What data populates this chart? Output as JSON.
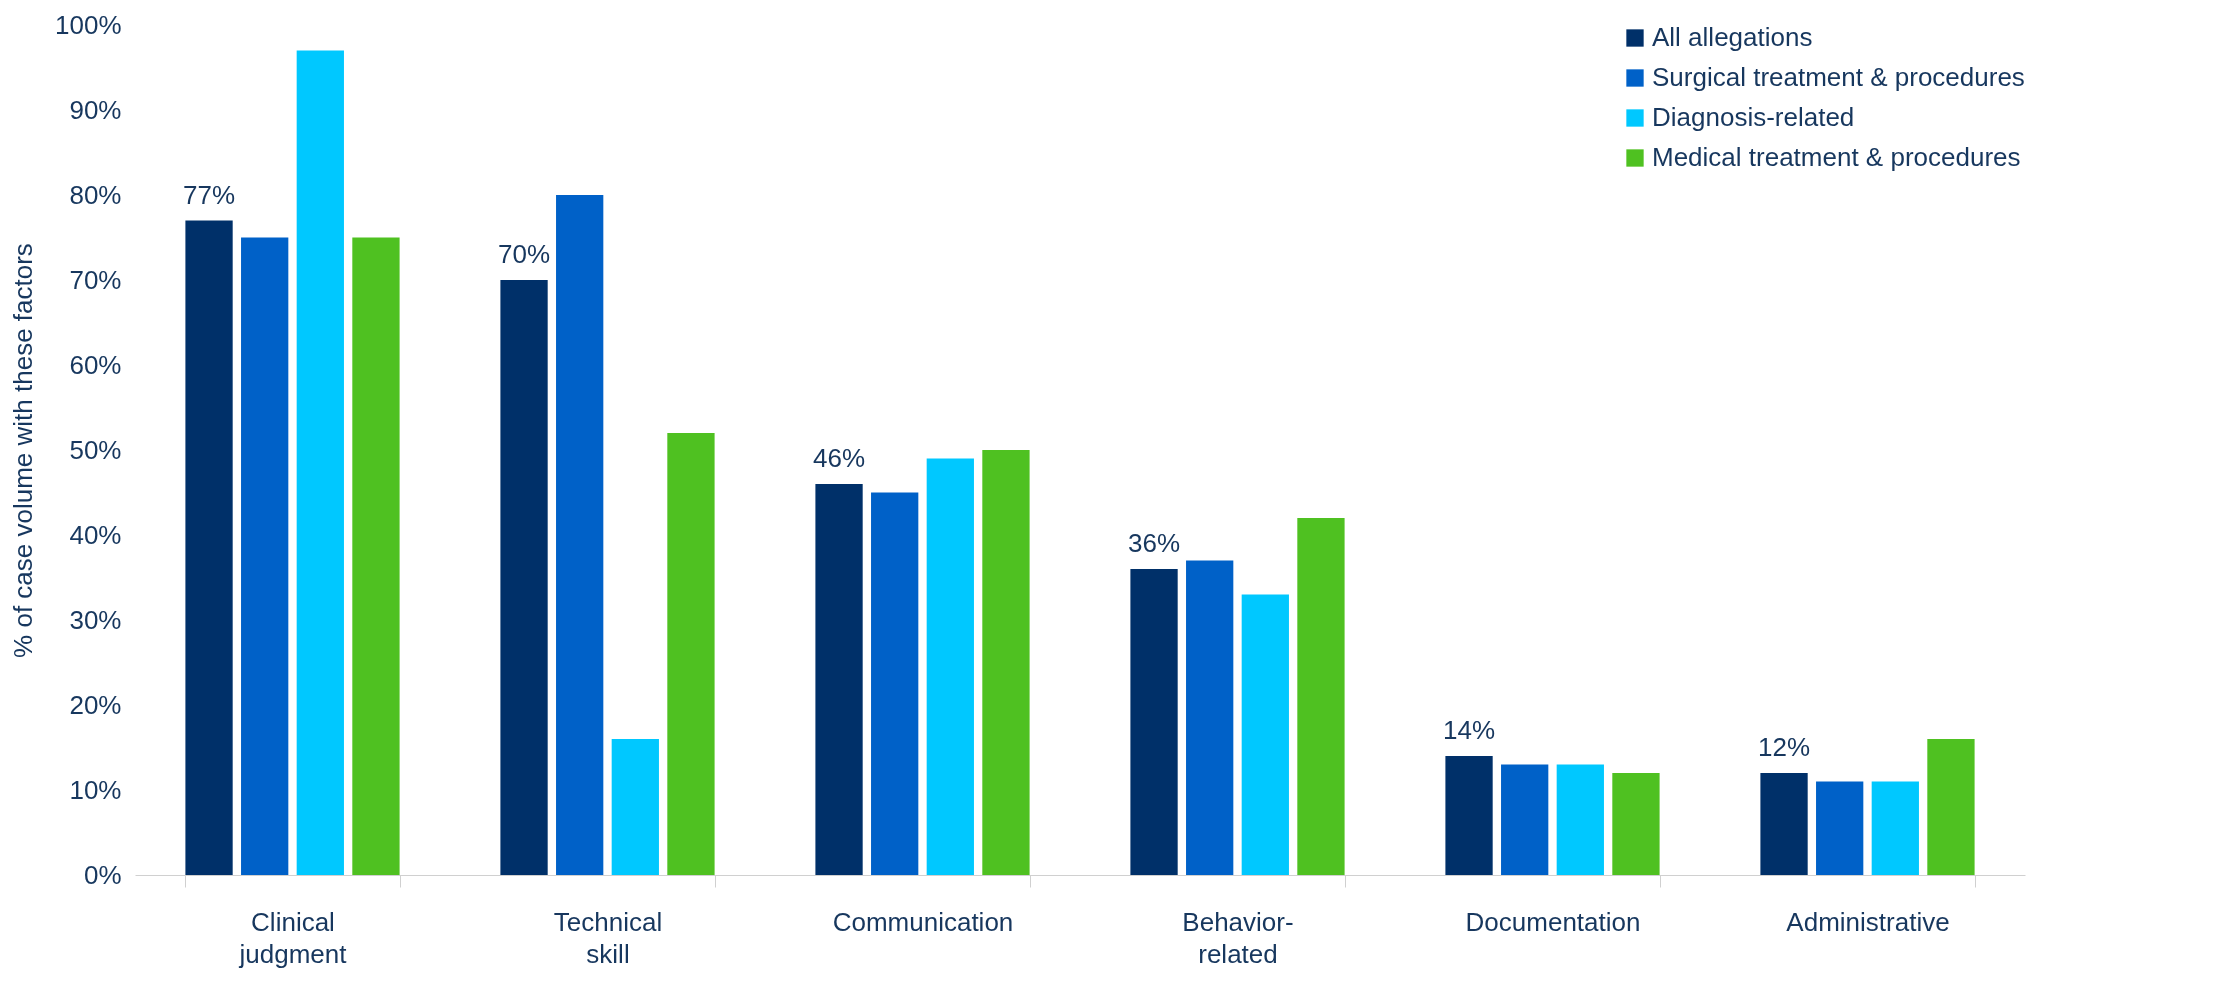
{
  "chart_data": {
    "type": "bar",
    "ylabel": "% of case volume with these factors",
    "categories": [
      "Clinical judgment",
      "Technical skill",
      "Communication",
      "Behavior-related",
      "Documentation",
      "Administrative"
    ],
    "series": [
      {
        "name": "All allegations",
        "color": "#003069",
        "values": [
          77,
          70,
          46,
          36,
          14,
          12
        ],
        "value_labels": [
          "77%",
          "70%",
          "46%",
          "36%",
          "14%",
          "12%"
        ]
      },
      {
        "name": "Surgical treatment & procedures",
        "color": "#0061c8",
        "values": [
          75,
          80,
          45,
          37,
          13,
          11
        ]
      },
      {
        "name": "Diagnosis-related",
        "color": "#00c8ff",
        "values": [
          97,
          16,
          49,
          33,
          13,
          11
        ]
      },
      {
        "name": "Medical treatment & procedures",
        "color": "#4fc121",
        "values": [
          75,
          52,
          50,
          42,
          12,
          16
        ]
      }
    ],
    "ylim": [
      0,
      100
    ],
    "yticks": [
      {
        "value": 0,
        "label": "0%"
      },
      {
        "value": 10,
        "label": "10%"
      },
      {
        "value": 20,
        "label": "20%"
      },
      {
        "value": 30,
        "label": "30%"
      },
      {
        "value": 40,
        "label": "40%"
      },
      {
        "value": 50,
        "label": "50%"
      },
      {
        "value": 60,
        "label": "60%"
      },
      {
        "value": 70,
        "label": "70%"
      },
      {
        "value": 80,
        "label": "80%"
      },
      {
        "value": 90,
        "label": "90%"
      },
      {
        "value": 100,
        "label": "100%"
      }
    ],
    "grid": false,
    "legend": "top right"
  }
}
